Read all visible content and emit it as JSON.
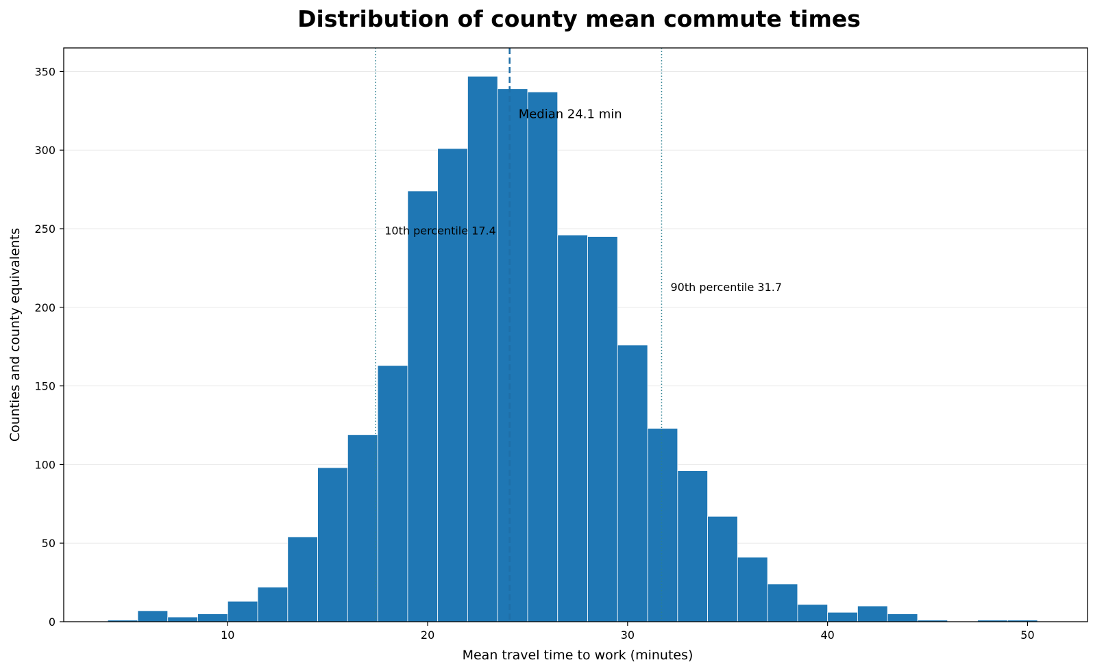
{
  "chart_data": {
    "type": "bar",
    "title": "Distribution of county mean commute times",
    "xlabel": "Mean travel time to work (minutes)",
    "ylabel": "Counties and county equivalents",
    "xlim": [
      1.8,
      53
    ],
    "ylim": [
      0,
      365
    ],
    "xticks": [
      10,
      20,
      30,
      40,
      50
    ],
    "yticks": [
      0,
      50,
      100,
      150,
      200,
      250,
      300,
      350
    ],
    "grid": "horizontal",
    "bin_width": 1.5,
    "bins": [
      {
        "x0": 4.0,
        "count": 1
      },
      {
        "x0": 5.5,
        "count": 7
      },
      {
        "x0": 7.0,
        "count": 3
      },
      {
        "x0": 8.5,
        "count": 5
      },
      {
        "x0": 10.0,
        "count": 13
      },
      {
        "x0": 11.5,
        "count": 22
      },
      {
        "x0": 13.0,
        "count": 54
      },
      {
        "x0": 14.5,
        "count": 98
      },
      {
        "x0": 16.0,
        "count": 119
      },
      {
        "x0": 17.5,
        "count": 163
      },
      {
        "x0": 19.0,
        "count": 274
      },
      {
        "x0": 20.5,
        "count": 301
      },
      {
        "x0": 22.0,
        "count": 347
      },
      {
        "x0": 23.5,
        "count": 339
      },
      {
        "x0": 25.0,
        "count": 337
      },
      {
        "x0": 26.5,
        "count": 246
      },
      {
        "x0": 28.0,
        "count": 245
      },
      {
        "x0": 29.5,
        "count": 176
      },
      {
        "x0": 31.0,
        "count": 123
      },
      {
        "x0": 32.5,
        "count": 96
      },
      {
        "x0": 34.0,
        "count": 67
      },
      {
        "x0": 35.5,
        "count": 41
      },
      {
        "x0": 37.0,
        "count": 24
      },
      {
        "x0": 38.5,
        "count": 11
      },
      {
        "x0": 40.0,
        "count": 6
      },
      {
        "x0": 41.5,
        "count": 10
      },
      {
        "x0": 43.0,
        "count": 5
      },
      {
        "x0": 44.5,
        "count": 1
      },
      {
        "x0": 46.0,
        "count": 0
      },
      {
        "x0": 47.5,
        "count": 1
      },
      {
        "x0": 49.0,
        "count": 1
      }
    ],
    "reference_lines": [
      {
        "name": "median",
        "x": 24.1,
        "style": "dashed",
        "label": "Median 24.1 min",
        "label_y": 323
      },
      {
        "name": "p10",
        "x": 17.4,
        "style": "dotted",
        "label": "10th percentile 17.4",
        "label_y": 249
      },
      {
        "name": "p90",
        "x": 31.7,
        "style": "dotted",
        "label": "90th percentile 31.7",
        "label_y": 213
      }
    ],
    "colors": {
      "bar": "#1f77b4",
      "bar_edge": "#ffffff",
      "median_line": "#1f6fa8",
      "percentile_line": "#2a7f8f",
      "grid": "#e9e9e9"
    }
  }
}
